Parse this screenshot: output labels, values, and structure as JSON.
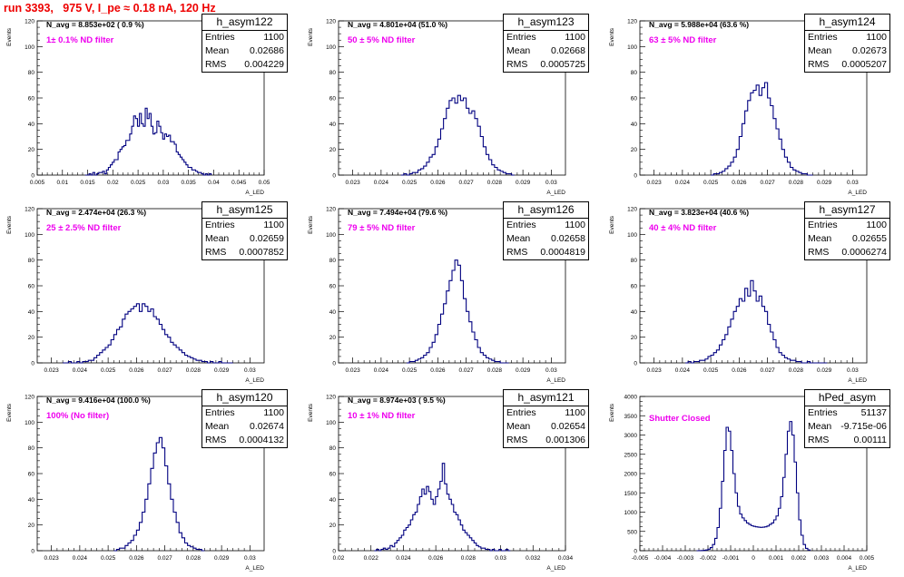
{
  "title": "run 3393,   975 V, I_pe ≈ 0.18 nA, 120 Hz",
  "stats_labels": {
    "entries": "Entries",
    "mean": "Mean",
    "rms": "RMS"
  },
  "ylabel": "Events",
  "xlabel": "A_LED",
  "colors": {
    "hist": "#000080",
    "title": "#ee0000",
    "filter": "#ee00ee"
  },
  "panels": [
    {
      "id": "p0",
      "hist_name": "h_asym122",
      "entries": "1100",
      "mean": "0.02686",
      "rms": "0.004229",
      "navg": "N_avg = 8.853e+02 ( 0.9 %)",
      "filter": "1± 0.1% ND filter",
      "chart_data": {
        "type": "histogram",
        "xlim": [
          0.005,
          0.05
        ],
        "ylim": [
          0,
          120
        ],
        "xticks": [
          "0.005",
          "0.01",
          "0.015",
          "0.02",
          "0.025",
          "0.03",
          "0.035",
          "0.04",
          "0.045",
          "0.05"
        ],
        "yticks": [
          "0",
          "20",
          "40",
          "60",
          "80",
          "100",
          "120"
        ],
        "bin_edges": [
          0.0145,
          0.0395
        ],
        "counts": [
          0,
          0,
          1,
          0,
          2,
          0,
          1,
          2,
          2,
          3,
          1,
          4,
          6,
          8,
          10,
          12,
          12,
          18,
          20,
          22,
          23,
          27,
          27,
          32,
          38,
          46,
          44,
          38,
          48,
          40,
          38,
          52,
          44,
          48,
          38,
          32,
          33,
          42,
          38,
          33,
          28,
          32,
          30,
          31,
          26,
          26,
          24,
          18,
          16,
          14,
          12,
          10,
          8,
          6,
          6,
          4,
          4,
          3,
          2,
          2,
          1,
          0,
          1,
          0,
          1
        ]
      }
    },
    {
      "id": "p1",
      "hist_name": "h_asym123",
      "entries": "1100",
      "mean": "0.02668",
      "rms": "0.0005725",
      "navg": "N_avg = 4.801e+04 (51.0 %)",
      "filter": "50 ± 5% ND filter",
      "chart_data": {
        "type": "histogram",
        "xlim": [
          0.0225,
          0.0305
        ],
        "ylim": [
          0,
          120
        ],
        "xticks": [
          "0.023",
          "0.024",
          "0.025",
          "0.026",
          "0.027",
          "0.028",
          "0.029",
          "0.03"
        ],
        "yticks": [
          "0",
          "20",
          "40",
          "60",
          "80",
          "100",
          "120"
        ],
        "bin_edges": [
          0.0247,
          0.0287
        ],
        "counts": [
          0,
          1,
          0,
          1,
          2,
          2,
          4,
          5,
          7,
          10,
          14,
          16,
          22,
          28,
          36,
          44,
          52,
          58,
          60,
          56,
          62,
          58,
          60,
          52,
          48,
          50,
          44,
          38,
          30,
          22,
          16,
          12,
          8,
          6,
          4,
          3,
          2,
          1,
          1,
          0
        ]
      }
    },
    {
      "id": "p2",
      "hist_name": "h_asym124",
      "entries": "1100",
      "mean": "0.02673",
      "rms": "0.0005207",
      "navg": "N_avg = 5.988e+04 (63.6 %)",
      "filter": "63 ± 5% ND filter",
      "chart_data": {
        "type": "histogram",
        "xlim": [
          0.0225,
          0.0305
        ],
        "ylim": [
          0,
          120
        ],
        "xticks": [
          "0.023",
          "0.024",
          "0.025",
          "0.026",
          "0.027",
          "0.028",
          "0.029",
          "0.03"
        ],
        "yticks": [
          "0",
          "20",
          "40",
          "60",
          "80",
          "100",
          "120"
        ],
        "bin_edges": [
          0.025,
          0.0286
        ],
        "counts": [
          0,
          1,
          1,
          2,
          3,
          5,
          7,
          10,
          14,
          20,
          30,
          40,
          50,
          58,
          64,
          66,
          70,
          62,
          68,
          72,
          60,
          54,
          44,
          36,
          28,
          20,
          14,
          10,
          6,
          4,
          3,
          2,
          1,
          1,
          0,
          0
        ]
      }
    },
    {
      "id": "p3",
      "hist_name": "h_asym125",
      "entries": "1100",
      "mean": "0.02659",
      "rms": "0.0007852",
      "navg": "N_avg = 2.474e+04 (26.3 %)",
      "filter": "25 ± 2.5% ND filter",
      "chart_data": {
        "type": "histogram",
        "xlim": [
          0.0225,
          0.0305
        ],
        "ylim": [
          0,
          120
        ],
        "xticks": [
          "0.023",
          "0.024",
          "0.025",
          "0.026",
          "0.027",
          "0.028",
          "0.029",
          "0.03"
        ],
        "yticks": [
          "0",
          "20",
          "40",
          "60",
          "80",
          "100",
          "120"
        ],
        "bin_edges": [
          0.0234,
          0.0294
        ],
        "counts": [
          0,
          0,
          1,
          0,
          0,
          1,
          0,
          1,
          1,
          2,
          2,
          4,
          6,
          8,
          10,
          12,
          14,
          18,
          22,
          26,
          28,
          34,
          38,
          40,
          42,
          44,
          46,
          40,
          46,
          44,
          40,
          42,
          36,
          34,
          30,
          26,
          22,
          20,
          16,
          14,
          12,
          10,
          8,
          6,
          5,
          4,
          3,
          2,
          2,
          1,
          1,
          0,
          1,
          0,
          0,
          1,
          0,
          0,
          0,
          0
        ]
      }
    },
    {
      "id": "p4",
      "hist_name": "h_asym126",
      "entries": "1100",
      "mean": "0.02658",
      "rms": "0.0004819",
      "navg": "N_avg = 7.494e+04 (79.6 %)",
      "filter": "79 ± 5% ND filter",
      "chart_data": {
        "type": "histogram",
        "xlim": [
          0.0225,
          0.0305
        ],
        "ylim": [
          0,
          120
        ],
        "xticks": [
          "0.023",
          "0.024",
          "0.025",
          "0.026",
          "0.027",
          "0.028",
          "0.029",
          "0.03"
        ],
        "yticks": [
          "0",
          "20",
          "40",
          "60",
          "80",
          "100",
          "120"
        ],
        "bin_edges": [
          0.0249,
          0.0285
        ],
        "counts": [
          0,
          1,
          1,
          2,
          3,
          4,
          6,
          8,
          12,
          16,
          22,
          30,
          38,
          46,
          56,
          64,
          72,
          80,
          76,
          64,
          50,
          40,
          32,
          24,
          18,
          12,
          8,
          6,
          4,
          3,
          2,
          1,
          1,
          0,
          0,
          0
        ]
      }
    },
    {
      "id": "p5",
      "hist_name": "h_asym127",
      "entries": "1100",
      "mean": "0.02655",
      "rms": "0.0006274",
      "navg": "N_avg = 3.823e+04 (40.6 %)",
      "filter": "40 ± 4% ND filter",
      "chart_data": {
        "type": "histogram",
        "xlim": [
          0.0225,
          0.0305
        ],
        "ylim": [
          0,
          120
        ],
        "xticks": [
          "0.023",
          "0.024",
          "0.025",
          "0.026",
          "0.027",
          "0.028",
          "0.029",
          "0.03"
        ],
        "yticks": [
          "0",
          "20",
          "40",
          "60",
          "80",
          "100",
          "120"
        ],
        "bin_edges": [
          0.0241,
          0.0291
        ],
        "counts": [
          0,
          1,
          0,
          1,
          1,
          2,
          2,
          3,
          5,
          6,
          8,
          10,
          14,
          18,
          22,
          28,
          34,
          40,
          44,
          50,
          48,
          58,
          52,
          64,
          56,
          48,
          52,
          44,
          40,
          30,
          24,
          18,
          12,
          8,
          6,
          4,
          3,
          2,
          2,
          1,
          1,
          0,
          0,
          1,
          0,
          0,
          0,
          0,
          0,
          0
        ]
      }
    },
    {
      "id": "p6",
      "hist_name": "h_asym120",
      "entries": "1100",
      "mean": "0.02674",
      "rms": "0.0004132",
      "navg": "N_avg = 9.416e+04 (100.0 %)",
      "filter": "100% (No filter)",
      "chart_data": {
        "type": "histogram",
        "xlim": [
          0.0225,
          0.0305
        ],
        "ylim": [
          0,
          120
        ],
        "xticks": [
          "0.023",
          "0.024",
          "0.025",
          "0.026",
          "0.027",
          "0.028",
          "0.029",
          "0.03"
        ],
        "yticks": [
          "0",
          "20",
          "40",
          "60",
          "80",
          "100",
          "120"
        ],
        "bin_edges": [
          0.0252,
          0.0284
        ],
        "counts": [
          0,
          1,
          2,
          2,
          4,
          6,
          8,
          12,
          16,
          22,
          30,
          40,
          52,
          64,
          76,
          84,
          88,
          80,
          66,
          52,
          40,
          30,
          22,
          14,
          10,
          6,
          4,
          3,
          2,
          1,
          1,
          0
        ]
      }
    },
    {
      "id": "p7",
      "hist_name": "h_asym121",
      "entries": "1100",
      "mean": "0.02654",
      "rms": "0.001306",
      "navg": "N_avg = 8.974e+03 ( 9.5 %)",
      "filter": "10 ± 1% ND filter",
      "chart_data": {
        "type": "histogram",
        "xlim": [
          0.02,
          0.034
        ],
        "ylim": [
          0,
          120
        ],
        "xticks": [
          "0.02",
          "0.022",
          "0.024",
          "0.026",
          "0.028",
          "0.03",
          "0.032",
          "0.034"
        ],
        "yticks": [
          "0",
          "20",
          "40",
          "60",
          "80",
          "100",
          "120"
        ],
        "bin_edges": [
          0.0222,
          0.0306
        ],
        "counts": [
          0,
          1,
          0,
          1,
          2,
          1,
          2,
          4,
          3,
          6,
          8,
          10,
          12,
          16,
          18,
          20,
          24,
          28,
          30,
          36,
          42,
          48,
          44,
          50,
          46,
          40,
          36,
          42,
          48,
          54,
          68,
          52,
          44,
          40,
          36,
          30,
          28,
          24,
          20,
          16,
          14,
          12,
          10,
          8,
          6,
          4,
          3,
          2,
          2,
          1,
          1,
          0,
          1,
          0,
          0,
          1,
          0,
          0,
          1,
          0
        ]
      }
    },
    {
      "id": "p8",
      "hist_name": "hPed_asym",
      "entries": "51137",
      "mean": "-9.715e-06",
      "rms": "0.00111",
      "navg": "",
      "filter": "Shutter Closed",
      "chart_data": {
        "type": "histogram",
        "xlim": [
          -0.005,
          0.005
        ],
        "ylim": [
          0,
          4000
        ],
        "xticks": [
          "-0.005",
          "-0.004",
          "-0.003",
          "-0.002",
          "-0.001",
          "0",
          "0.001",
          "0.002",
          "0.003",
          "0.004",
          "0.005"
        ],
        "yticks": [
          "0",
          "500",
          "1000",
          "1500",
          "2000",
          "2500",
          "3000",
          "3500",
          "4000"
        ],
        "bin_edges": [
          -0.0025,
          0.0025
        ],
        "counts": [
          0,
          2,
          5,
          10,
          20,
          40,
          80,
          160,
          320,
          600,
          1100,
          1800,
          2600,
          3200,
          3100,
          2600,
          2000,
          1500,
          1150,
          950,
          850,
          780,
          720,
          680,
          650,
          630,
          620,
          610,
          605,
          610,
          620,
          640,
          680,
          720,
          800,
          900,
          1100,
          1400,
          1900,
          2500,
          3100,
          3350,
          3000,
          2300,
          1500,
          800,
          400,
          160,
          60,
          20
        ]
      }
    }
  ]
}
